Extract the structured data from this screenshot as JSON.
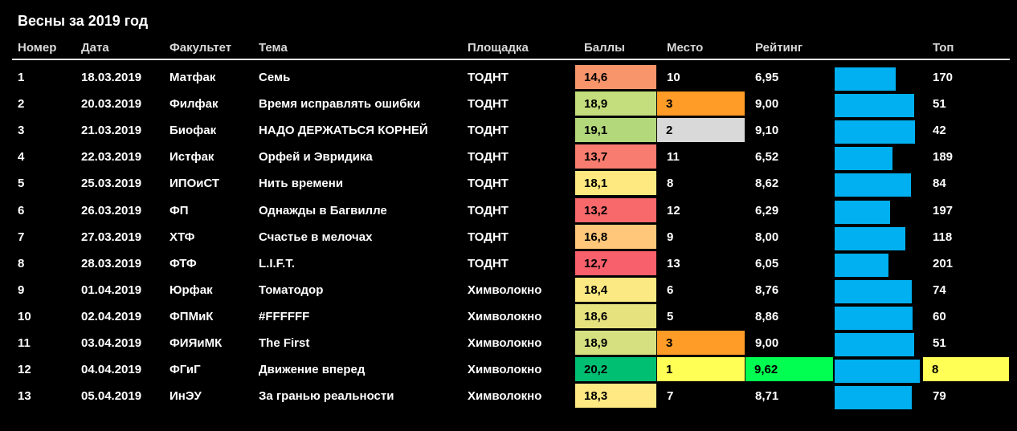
{
  "title": "Весны за 2019 год",
  "headers": {
    "num": "Номер",
    "date": "Дата",
    "faculty": "Факультет",
    "theme": "Тема",
    "venue": "Площадка",
    "score": "Баллы",
    "place": "Место",
    "rating": "Рейтинг",
    "top": "Топ"
  },
  "chart_data": {
    "type": "table",
    "title": "Весны за 2019 год",
    "rating_bar_range": [
      0,
      10
    ],
    "rows": [
      {
        "num": "1",
        "date": "18.03.2019",
        "faculty": "Матфак",
        "theme": "Семь",
        "venue": "ТОДНТ",
        "score": "14,6",
        "place": "10",
        "rating": "6,95",
        "rating_value": 6.95,
        "top": "170",
        "score_color": "#f9956b",
        "place_color": "",
        "rating_color": "",
        "top_color": ""
      },
      {
        "num": "2",
        "date": "20.03.2019",
        "faculty": "Филфак",
        "theme": "Время исправлять ошибки",
        "venue": "ТОДНТ",
        "score": "18,9",
        "place": "3",
        "rating": "9,00",
        "rating_value": 9.0,
        "top": "51",
        "score_color": "#c5de7d",
        "place_color": "#ff9b27",
        "rating_color": "",
        "top_color": ""
      },
      {
        "num": "3",
        "date": "21.03.2019",
        "faculty": "Биофак",
        "theme": "НАДО ДЕРЖАТЬСЯ КОРНЕЙ",
        "venue": "ТОДНТ",
        "score": "19,1",
        "place": "2",
        "rating": "9,10",
        "rating_value": 9.1,
        "top": "42",
        "score_color": "#b3d87b",
        "place_color": "#d9d9d9",
        "rating_color": "",
        "top_color": ""
      },
      {
        "num": "4",
        "date": "22.03.2019",
        "faculty": "Истфак",
        "theme": "Орфей и Эвридика",
        "venue": "ТОДНТ",
        "score": "13,7",
        "place": "11",
        "rating": "6,52",
        "rating_value": 6.52,
        "top": "189",
        "score_color": "#f87c6f",
        "place_color": "",
        "rating_color": "",
        "top_color": ""
      },
      {
        "num": "5",
        "date": "25.03.2019",
        "faculty": "ИПОиСТ",
        "theme": "Нить времени",
        "venue": "ТОДНТ",
        "score": "18,1",
        "place": "8",
        "rating": "8,62",
        "rating_value": 8.62,
        "top": "84",
        "score_color": "#fde97f",
        "place_color": "",
        "rating_color": "",
        "top_color": ""
      },
      {
        "num": "6",
        "date": "26.03.2019",
        "faculty": "ФП",
        "theme": "Однажды в Багвилле",
        "venue": "ТОДНТ",
        "score": "13,2",
        "place": "12",
        "rating": "6,29",
        "rating_value": 6.29,
        "top": "197",
        "score_color": "#f8696b",
        "place_color": "",
        "rating_color": "",
        "top_color": ""
      },
      {
        "num": "7",
        "date": "27.03.2019",
        "faculty": "ХТФ",
        "theme": "Счастье в мелочах",
        "venue": "ТОДНТ",
        "score": "16,8",
        "place": "9",
        "rating": "8,00",
        "rating_value": 8.0,
        "top": "118",
        "score_color": "#fec77a",
        "place_color": "",
        "rating_color": "",
        "top_color": ""
      },
      {
        "num": "8",
        "date": "28.03.2019",
        "faculty": "ФТФ",
        "theme": "L.I.F.T.",
        "venue": "ТОДНТ",
        "score": "12,7",
        "place": "13",
        "rating": "6,05",
        "rating_value": 6.05,
        "top": "201",
        "score_color": "#f8606b",
        "place_color": "",
        "rating_color": "",
        "top_color": ""
      },
      {
        "num": "9",
        "date": "01.04.2019",
        "faculty": "Юрфак",
        "theme": "Томатодор",
        "venue": "Химволокно",
        "score": "18,4",
        "place": "6",
        "rating": "8,76",
        "rating_value": 8.76,
        "top": "74",
        "score_color": "#fbe983",
        "place_color": "",
        "rating_color": "",
        "top_color": ""
      },
      {
        "num": "10",
        "date": "02.04.2019",
        "faculty": "ФПМиК",
        "theme": "#FFFFFF",
        "venue": "Химволокно",
        "score": "18,6",
        "place": "5",
        "rating": "8,86",
        "rating_value": 8.86,
        "top": "60",
        "score_color": "#e6e37f",
        "place_color": "",
        "rating_color": "",
        "top_color": ""
      },
      {
        "num": "11",
        "date": "03.04.2019",
        "faculty": "ФИЯиМК",
        "theme": "The First",
        "venue": "Химволокно",
        "score": "18,9",
        "place": "3",
        "rating": "9,00",
        "rating_value": 9.0,
        "top": "51",
        "score_color": "#d6e081",
        "place_color": "#ff9b27",
        "rating_color": "",
        "top_color": ""
      },
      {
        "num": "12",
        "date": "04.04.2019",
        "faculty": "ФГиГ",
        "theme": "Движение вперед",
        "venue": "Химволокно",
        "score": "20,2",
        "place": "1",
        "rating": "9,62",
        "rating_value": 9.62,
        "top": "8",
        "score_color": "#00bf73",
        "place_color": "#ffff55",
        "rating_color": "#00ff50",
        "top_color": "#ffff55"
      },
      {
        "num": "13",
        "date": "05.04.2019",
        "faculty": "ИнЭУ",
        "theme": "За гранью реальности",
        "venue": "Химволокно",
        "score": "18,3",
        "place": "7",
        "rating": "8,71",
        "rating_value": 8.71,
        "top": "79",
        "score_color": "#fee983",
        "place_color": "",
        "rating_color": "",
        "top_color": ""
      }
    ]
  },
  "colors": {
    "background": "#000000",
    "bar": "#00b0f0",
    "header_text": "#d8d8d8",
    "text": "#ffffff"
  }
}
